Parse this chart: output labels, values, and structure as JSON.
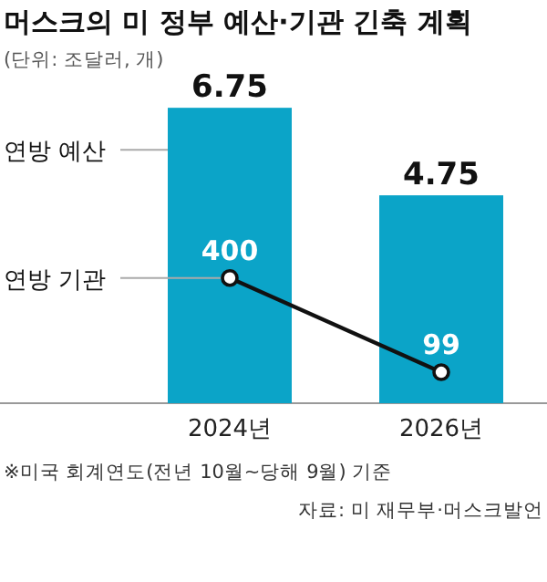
{
  "chart_data": {
    "type": "bar",
    "title": "머스크의 미 정부 예산·기관 긴축 계획",
    "subtitle": "(단위: 조달러, 개)",
    "categories": [
      "2024년",
      "2026년"
    ],
    "series": [
      {
        "name": "연방 예산",
        "color": "#0ba4c8",
        "values": [
          6.75,
          4.75
        ]
      },
      {
        "name": "연방 기관",
        "type": "line",
        "axis": "y2",
        "color": "#111111",
        "marker": "circle",
        "values": [
          400,
          99
        ]
      }
    ],
    "data_labels": true,
    "annotations": [
      "※미국 회계연도(전년 10월~당해 9월) 기준",
      "자료: 미 재무부·머스크발언"
    ]
  }
}
